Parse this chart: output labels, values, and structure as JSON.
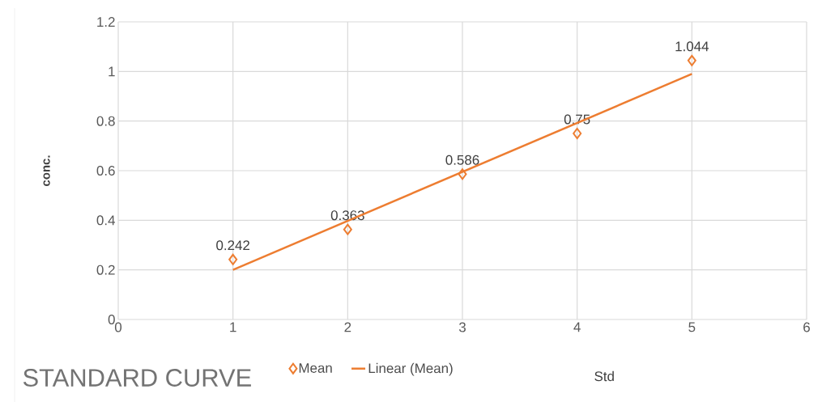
{
  "chart_data": {
    "type": "scatter",
    "title": "STANDARD CURVE",
    "ylabel": "conc.",
    "x": [
      1,
      2,
      3,
      4,
      5
    ],
    "series": [
      {
        "name": "Mean",
        "color": "#ed7d31",
        "marker": "diamond",
        "values": [
          0.242,
          0.363,
          0.586,
          0.75,
          1.044
        ],
        "value_labels": [
          "0.242",
          "0.363",
          "0.586",
          "0.75",
          "1.044"
        ]
      },
      {
        "name": "Linear (Mean)",
        "type": "line",
        "color": "#ed7d31",
        "x": [
          1,
          5
        ],
        "values": [
          0.2,
          0.99
        ]
      }
    ],
    "xlim": [
      0,
      6
    ],
    "xticks": [
      0,
      1,
      2,
      3,
      4,
      5,
      6
    ],
    "ylim": [
      0,
      1.2
    ],
    "yticks": [
      0,
      0.2,
      0.4,
      0.6,
      0.8,
      1,
      1.2
    ],
    "grid": true,
    "legend": "bottom",
    "line_style": "solid",
    "annotations": [
      "Std"
    ]
  }
}
